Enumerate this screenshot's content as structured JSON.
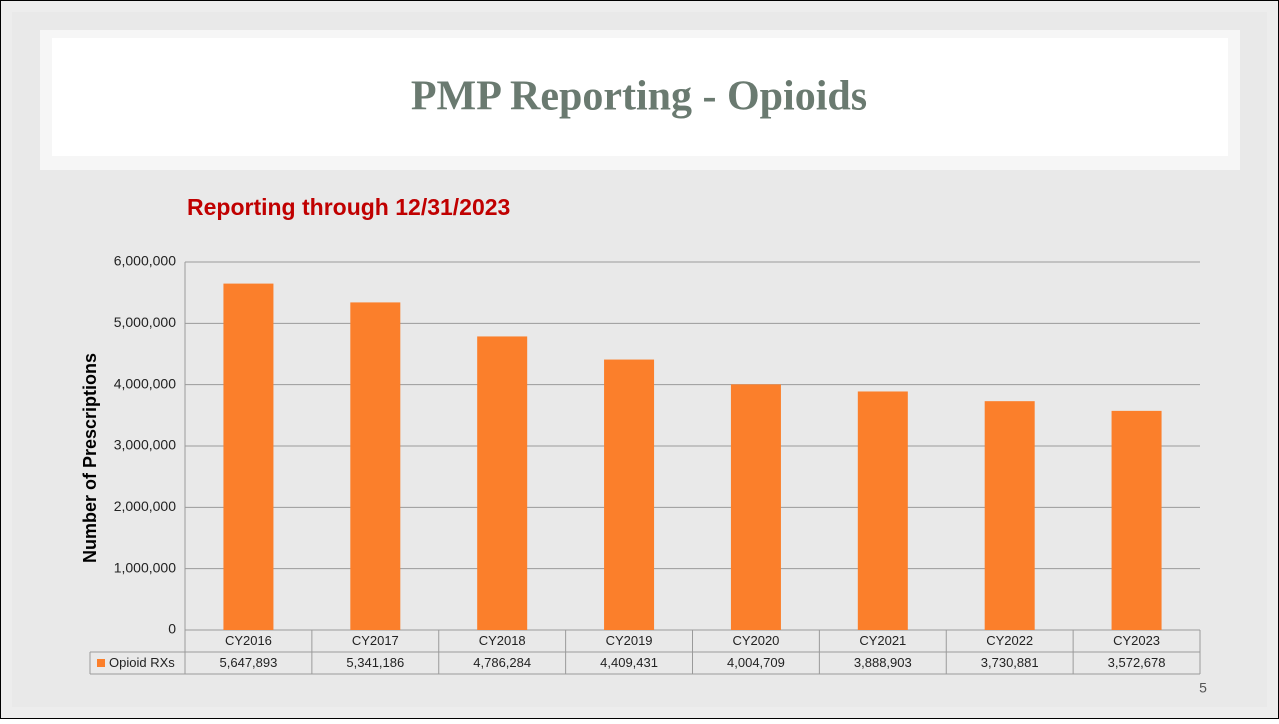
{
  "chart_data": {
    "type": "bar",
    "title": "PMP Reporting - Opioids",
    "subtitle": "Reporting through 12/31/2023",
    "y_label": "Number of Prescriptions",
    "categories": [
      "CY2016",
      "CY2017",
      "CY2018",
      "CY2019",
      "CY2020",
      "CY2021",
      "CY2022",
      "CY2023"
    ],
    "series": [
      {
        "name": "Opioid RXs",
        "color": "#fb7f2b",
        "values": [
          5647893,
          5341186,
          4786284,
          4409431,
          4004709,
          3888903,
          3730881,
          3572678
        ],
        "value_labels": [
          "5,647,893",
          "5,341,186",
          "4,786,284",
          "4,409,431",
          "4,004,709",
          "3,888,903",
          "3,730,881",
          "3,572,678"
        ]
      }
    ],
    "ylim": [
      0,
      6000000
    ],
    "yticks": [
      0,
      {
        "value": 1000000,
        "label": "1,000,000"
      },
      {
        "value": 2000000,
        "label": "2,000,000"
      },
      {
        "value": 3000000,
        "label": "3,000,000"
      },
      {
        "value": 4000000,
        "label": "4,000,000"
      },
      {
        "value": 5000000,
        "label": "5,000,000"
      },
      {
        "value": 6000000,
        "label": "6,000,000"
      }
    ],
    "grid": true,
    "page_number": "5"
  }
}
